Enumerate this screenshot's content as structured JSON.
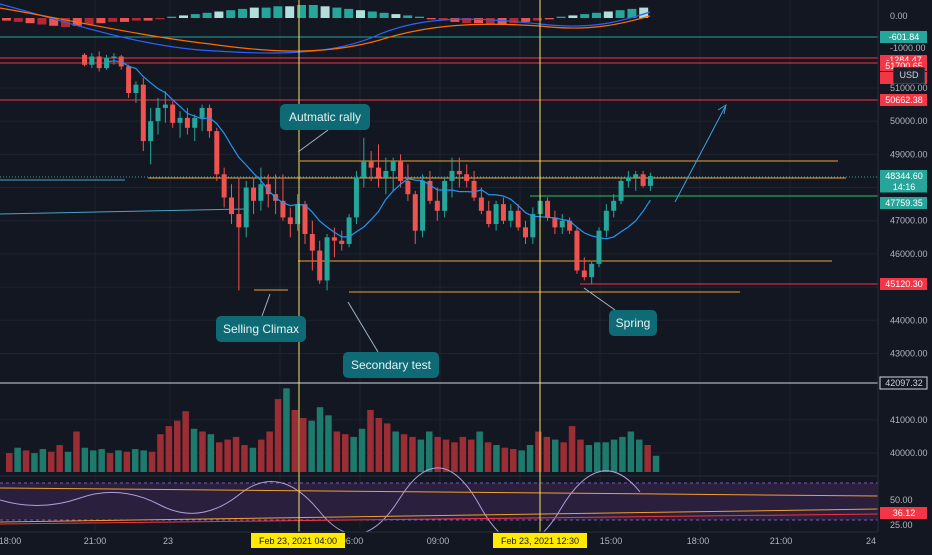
{
  "chart_data": {
    "type": "candlestick",
    "price_axis": {
      "ticks": [
        "51000.00",
        "50000.00",
        "49000.00",
        "48000.00",
        "47000.00",
        "46000.00",
        "45000.00",
        "44000.00",
        "43000.00",
        "41000.00",
        "40000.00"
      ],
      "tick_values": [
        51000,
        50000,
        49000,
        48000,
        47000,
        46000,
        45000,
        44000,
        43000,
        41000,
        40000
      ]
    },
    "macd_axis": {
      "ticks": [
        "0.00",
        "-1000.00"
      ]
    },
    "rsi_axis": {
      "ticks": [
        "50.00",
        "25.00"
      ]
    },
    "time_axis": {
      "ticks": [
        "18:00",
        "21:00",
        "23",
        "06:00",
        "09:00",
        "15:00",
        "18:00",
        "21:00",
        "24"
      ]
    },
    "highlighted_times": [
      "Feb 23, 2021  04:00",
      "Feb 23, 2021  12:30"
    ],
    "price_labels": [
      {
        "text": "-601.84",
        "color": "#26a69a"
      },
      {
        "text": "-1284.47",
        "color": "#f23645"
      },
      {
        "text": "51700.65",
        "color": "#f23645"
      },
      {
        "text": "51",
        "color": "#f23645"
      },
      {
        "text": "50662.38",
        "color": "#f23645"
      },
      {
        "text": "48344.60",
        "color": "#26a69a"
      },
      {
        "text": "14:16",
        "color": "#26a69a"
      },
      {
        "text": "47759.35",
        "color": "#26a69a"
      },
      {
        "text": "45120.30",
        "color": "#f23645"
      },
      {
        "text": "42097.32",
        "color": "#131722"
      },
      {
        "text": "36.12",
        "color": "#f23645"
      }
    ],
    "currency": "USD",
    "annotations": [
      "Autmatic rally",
      "Selling Climax",
      "Secondary test",
      "Spring"
    ],
    "horizontal_levels": [
      {
        "name": "resistance",
        "value": 50662.38,
        "color": "#f23645"
      },
      {
        "name": "automatic-rally",
        "value": 48800,
        "color": "#f0a030"
      },
      {
        "name": "support-high",
        "value": 48344.6,
        "color": "#4aa3c8"
      },
      {
        "name": "green-level",
        "value": 47759.35,
        "color": "#22c55e"
      },
      {
        "name": "range-low",
        "value": 45850,
        "color": "#f0a030"
      },
      {
        "name": "selling-climax-low",
        "value": 44880,
        "color": "#f0a030"
      },
      {
        "name": "spring-level",
        "value": 45120.3,
        "color": "#f23645"
      }
    ],
    "candles": [
      [
        52000,
        52050,
        51650,
        51700
      ],
      [
        51700,
        52050,
        51600,
        51950
      ],
      [
        51950,
        52100,
        51500,
        51600
      ],
      [
        51600,
        52000,
        51550,
        51900
      ],
      [
        51900,
        52050,
        51700,
        51950
      ],
      [
        51950,
        52000,
        51550,
        51650
      ],
      [
        51650,
        51700,
        50700,
        50850
      ],
      [
        50850,
        51200,
        50550,
        51100
      ],
      [
        51100,
        51300,
        49100,
        49400
      ],
      [
        49400,
        50400,
        48700,
        50000
      ],
      [
        50000,
        50700,
        49600,
        50400
      ],
      [
        50400,
        50900,
        49950,
        50500
      ],
      [
        50500,
        50600,
        49800,
        49950
      ],
      [
        49950,
        50300,
        49500,
        50100
      ],
      [
        50100,
        50400,
        49600,
        49800
      ],
      [
        49800,
        50200,
        49400,
        50100
      ],
      [
        50100,
        50500,
        49700,
        50400
      ],
      [
        50400,
        50500,
        49500,
        49700
      ],
      [
        49700,
        49800,
        48200,
        48400
      ],
      [
        48400,
        48600,
        47400,
        47700
      ],
      [
        47700,
        48100,
        46900,
        47200
      ],
      [
        47200,
        48300,
        44900,
        46800
      ],
      [
        46800,
        48200,
        46500,
        48000
      ],
      [
        48000,
        48300,
        47200,
        47600
      ],
      [
        47600,
        48600,
        47300,
        48100
      ],
      [
        48100,
        48400,
        47400,
        47800
      ],
      [
        47800,
        48400,
        47200,
        47600
      ],
      [
        47600,
        48400,
        47000,
        47100
      ],
      [
        47100,
        47400,
        46500,
        46900
      ],
      [
        46900,
        47800,
        46700,
        47500
      ],
      [
        47500,
        47600,
        46300,
        46600
      ],
      [
        46600,
        47000,
        45500,
        46100
      ],
      [
        46100,
        46400,
        45100,
        45200
      ],
      [
        45200,
        46600,
        44900,
        46500
      ],
      [
        46500,
        46800,
        45900,
        46400
      ],
      [
        46400,
        46700,
        46100,
        46300
      ],
      [
        46300,
        47200,
        46200,
        47100
      ],
      [
        47100,
        48500,
        46900,
        48300
      ],
      [
        48300,
        49500,
        48000,
        48800
      ],
      [
        48800,
        49100,
        48200,
        48600
      ],
      [
        48600,
        49300,
        48000,
        48300
      ],
      [
        48300,
        48900,
        47800,
        48500
      ],
      [
        48500,
        48900,
        47900,
        48800
      ],
      [
        48800,
        49000,
        48000,
        48200
      ],
      [
        48200,
        48700,
        47600,
        47800
      ],
      [
        47800,
        47900,
        46300,
        46700
      ],
      [
        46700,
        48400,
        46500,
        48200
      ],
      [
        48200,
        48500,
        47500,
        47600
      ],
      [
        47600,
        48000,
        47000,
        47300
      ],
      [
        47300,
        48300,
        47100,
        48200
      ],
      [
        48200,
        48900,
        47700,
        48500
      ],
      [
        48500,
        48900,
        48000,
        48400
      ],
      [
        48400,
        48700,
        48000,
        48200
      ],
      [
        48200,
        48500,
        47600,
        47700
      ],
      [
        47700,
        48000,
        47200,
        47300
      ],
      [
        47300,
        47600,
        46800,
        46900
      ],
      [
        46900,
        47600,
        46700,
        47500
      ],
      [
        47500,
        47700,
        46900,
        47000
      ],
      [
        47000,
        47500,
        46800,
        47300
      ],
      [
        47300,
        47500,
        46700,
        46800
      ],
      [
        46800,
        47000,
        46300,
        46500
      ],
      [
        46500,
        47400,
        46300,
        47200
      ],
      [
        47200,
        47800,
        47000,
        47600
      ],
      [
        47600,
        47700,
        47000,
        47100
      ],
      [
        47100,
        47300,
        46600,
        46800
      ],
      [
        46800,
        47200,
        46600,
        47000
      ],
      [
        47000,
        47100,
        46600,
        46700
      ],
      [
        46700,
        46800,
        45400,
        45500
      ],
      [
        45500,
        45900,
        45200,
        45300
      ],
      [
        45300,
        45800,
        45100,
        45700
      ],
      [
        45700,
        46800,
        45600,
        46700
      ],
      [
        46700,
        47500,
        46500,
        47300
      ],
      [
        47300,
        47800,
        47100,
        47600
      ],
      [
        47600,
        48300,
        47500,
        48200
      ],
      [
        48200,
        48500,
        48000,
        48300
      ],
      [
        48300,
        48500,
        47900,
        48400
      ],
      [
        48400,
        48500,
        48000,
        48050
      ],
      [
        48050,
        48450,
        47900,
        48344.6
      ]
    ],
    "volumes": [
      14,
      18,
      16,
      14,
      17,
      15,
      20,
      15,
      30,
      18,
      16,
      17,
      14,
      16,
      15,
      17,
      16,
      15,
      28,
      34,
      38,
      45,
      32,
      30,
      28,
      22,
      24,
      26,
      20,
      18,
      24,
      30,
      54,
      62,
      46,
      40,
      38,
      48,
      42,
      30,
      28,
      26,
      32,
      46,
      40,
      36,
      30,
      28,
      26,
      24,
      30,
      26,
      24,
      22,
      26,
      24,
      30,
      22,
      20,
      18,
      17,
      16,
      20,
      30,
      26,
      24,
      22,
      34,
      24,
      20,
      22,
      22,
      24,
      26,
      30,
      24,
      20,
      12
    ],
    "title": ""
  }
}
